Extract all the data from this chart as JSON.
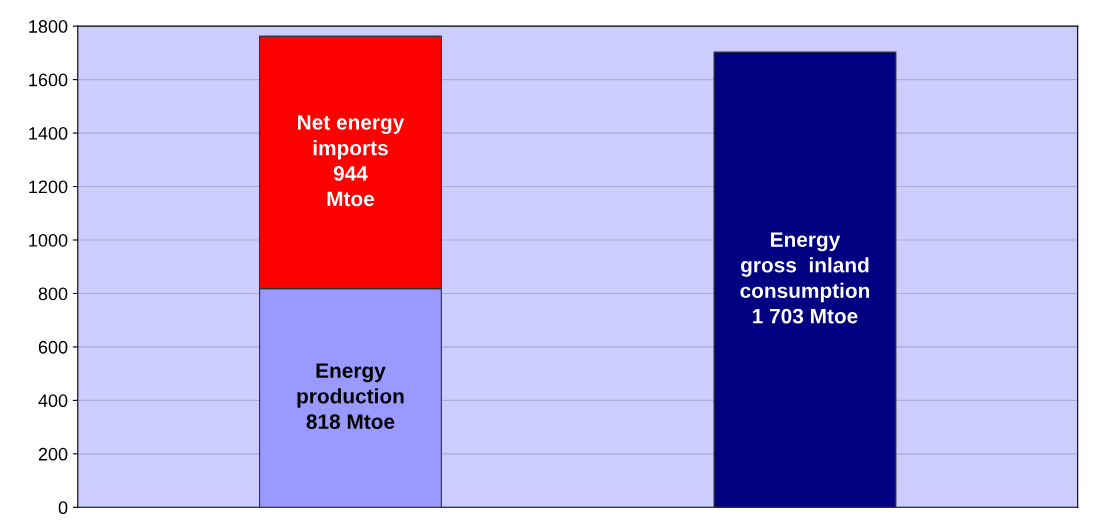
{
  "chart_data": {
    "type": "bar",
    "stacked": true,
    "categories": [
      null,
      null
    ],
    "series": [
      {
        "color": "#9999ff",
        "values": [
          818,
          null
        ],
        "value_labels": [
          "Energy\nproduction\n818 Mtoe",
          null
        ]
      },
      {
        "color": "#ff0000",
        "values": [
          944,
          null
        ],
        "value_labels": [
          "Net energy\nimports\n944\nMtoe",
          null
        ]
      },
      {
        "color": "#000080",
        "values": [
          null,
          1703
        ],
        "value_labels": [
          null,
          "Energy\ngross  inland\nconsumption\n1 703 Mtoe"
        ]
      }
    ],
    "ylim": [
      0,
      1800
    ],
    "yticks": [
      0,
      200,
      400,
      600,
      800,
      1000,
      1200,
      1400,
      1600,
      1800
    ],
    "grid": "y",
    "legend": false
  }
}
